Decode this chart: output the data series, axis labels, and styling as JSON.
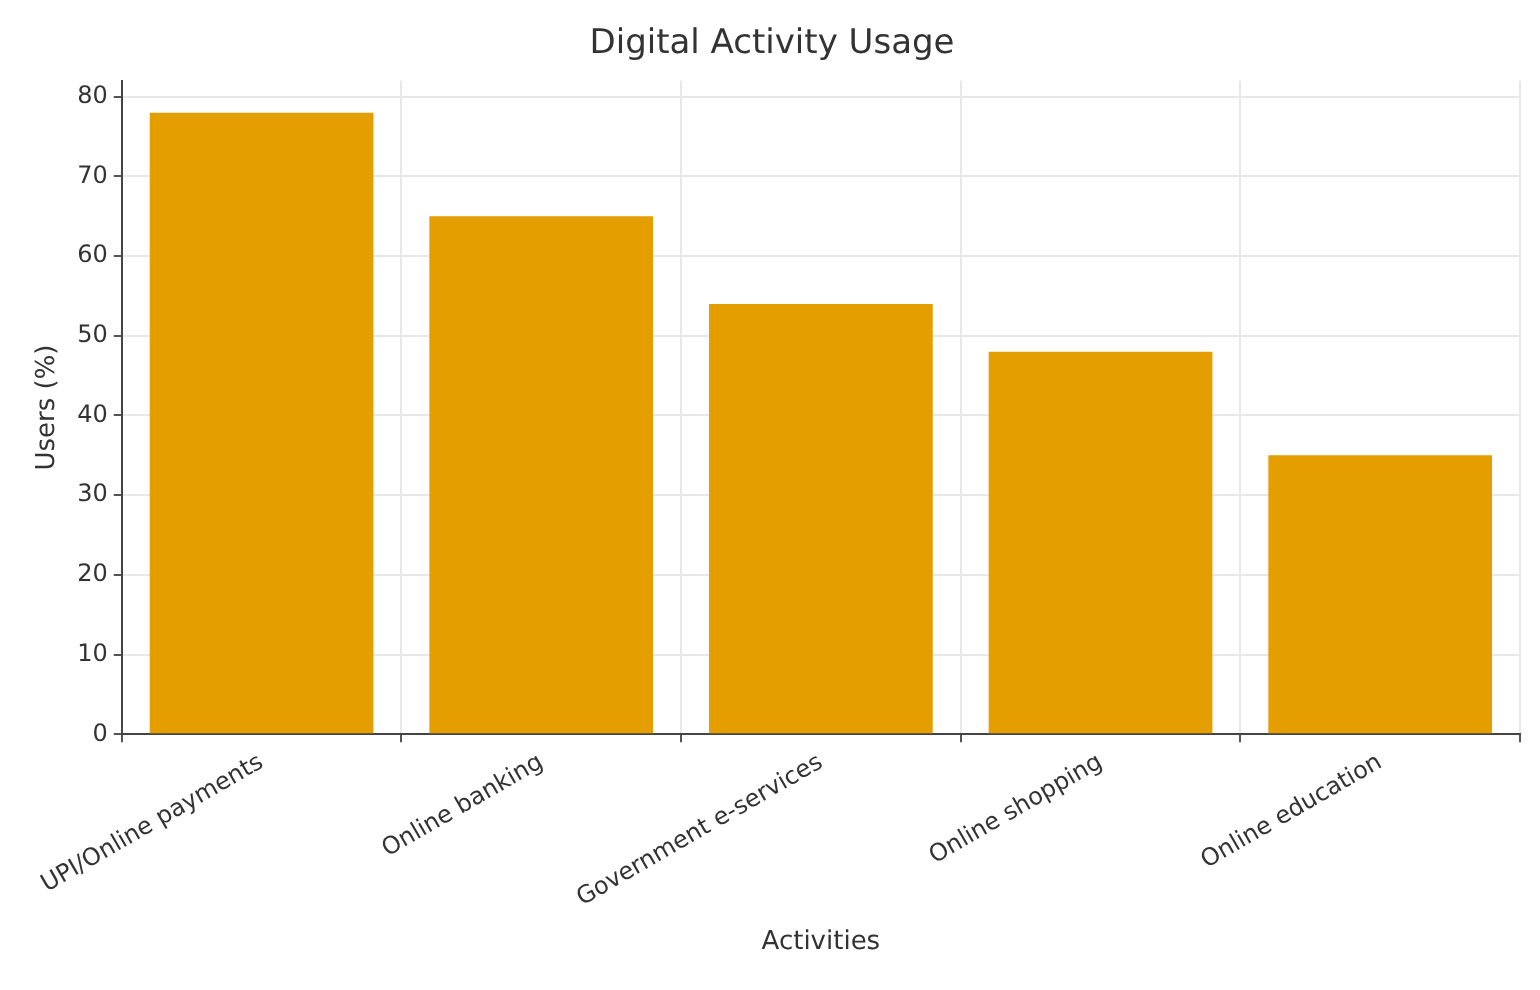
{
  "chart_data": {
    "type": "bar",
    "title": "Digital Activity Usage",
    "xlabel": "Activities",
    "ylabel": "Users (%)",
    "categories": [
      "UPI/Online payments",
      "Online banking",
      "Government e-services",
      "Online shopping",
      "Online education"
    ],
    "values": [
      78,
      65,
      54,
      48,
      35
    ],
    "color": "#e49e00",
    "ylim": [
      0,
      82
    ],
    "yticks": [
      0,
      10,
      20,
      30,
      40,
      50,
      60,
      70,
      80
    ],
    "grid": true,
    "legend": false
  }
}
